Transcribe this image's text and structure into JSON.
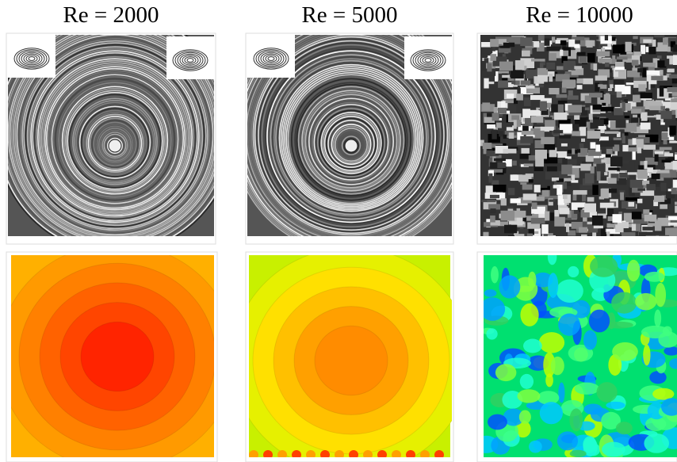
{
  "panels": [
    {
      "title": "Re = 2000"
    },
    {
      "title": "Re = 5000"
    },
    {
      "title": "Re = 10000"
    }
  ]
}
